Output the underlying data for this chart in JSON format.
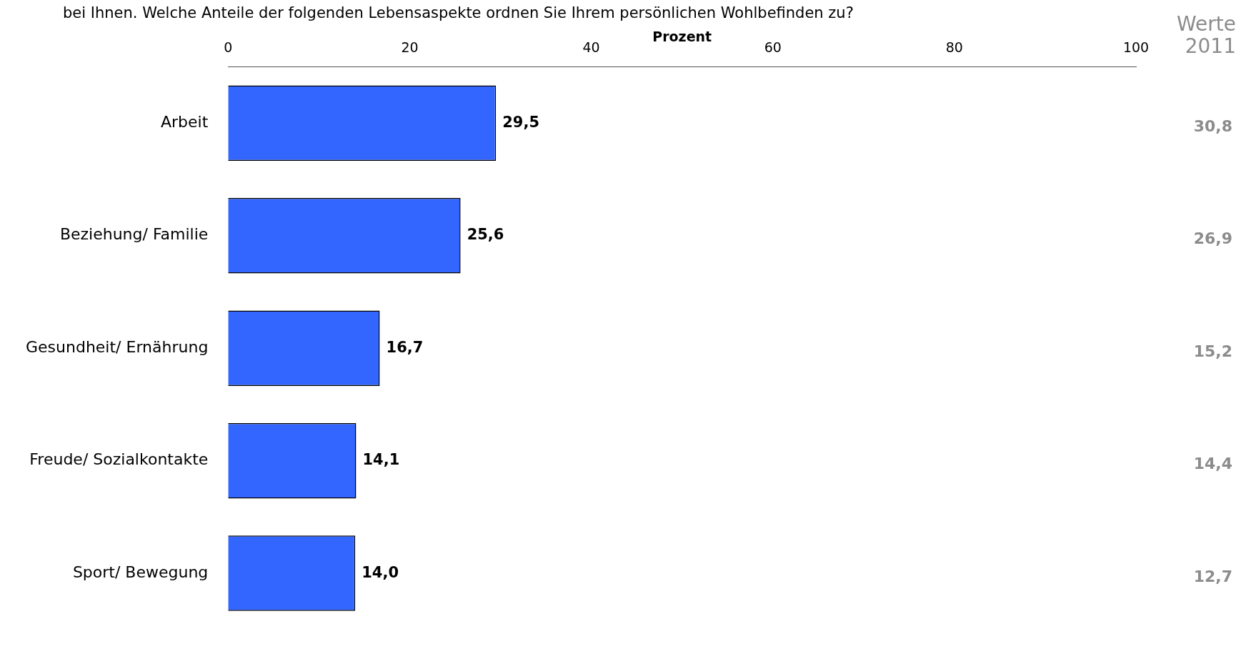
{
  "chart_data": {
    "type": "bar",
    "orientation": "horizontal",
    "title": "bei Ihnen. Welche Anteile der folgenden Lebensaspekte ordnen Sie Ihrem persönlichen Wohlbefinden zu?",
    "xlabel": "Prozent",
    "categories": [
      "Arbeit",
      "Beziehung/ Familie",
      "Gesundheit/ Ernährung",
      "Freude/ Sozialkontakte",
      "Sport/ Bewegung"
    ],
    "values": [
      29.5,
      25.6,
      16.7,
      14.1,
      14.0
    ],
    "color": "#3366ff",
    "value_labels": [
      "29,5",
      "25,6",
      "16,7",
      "14,1",
      "14,0"
    ],
    "xlim": [
      0,
      100
    ],
    "xticks": [
      0,
      20,
      40,
      60,
      80,
      100
    ],
    "grid": false,
    "annotations": [
      "Werte 2011",
      "30,8",
      "26,9",
      "15,2",
      "14,4",
      "12,7"
    ]
  }
}
